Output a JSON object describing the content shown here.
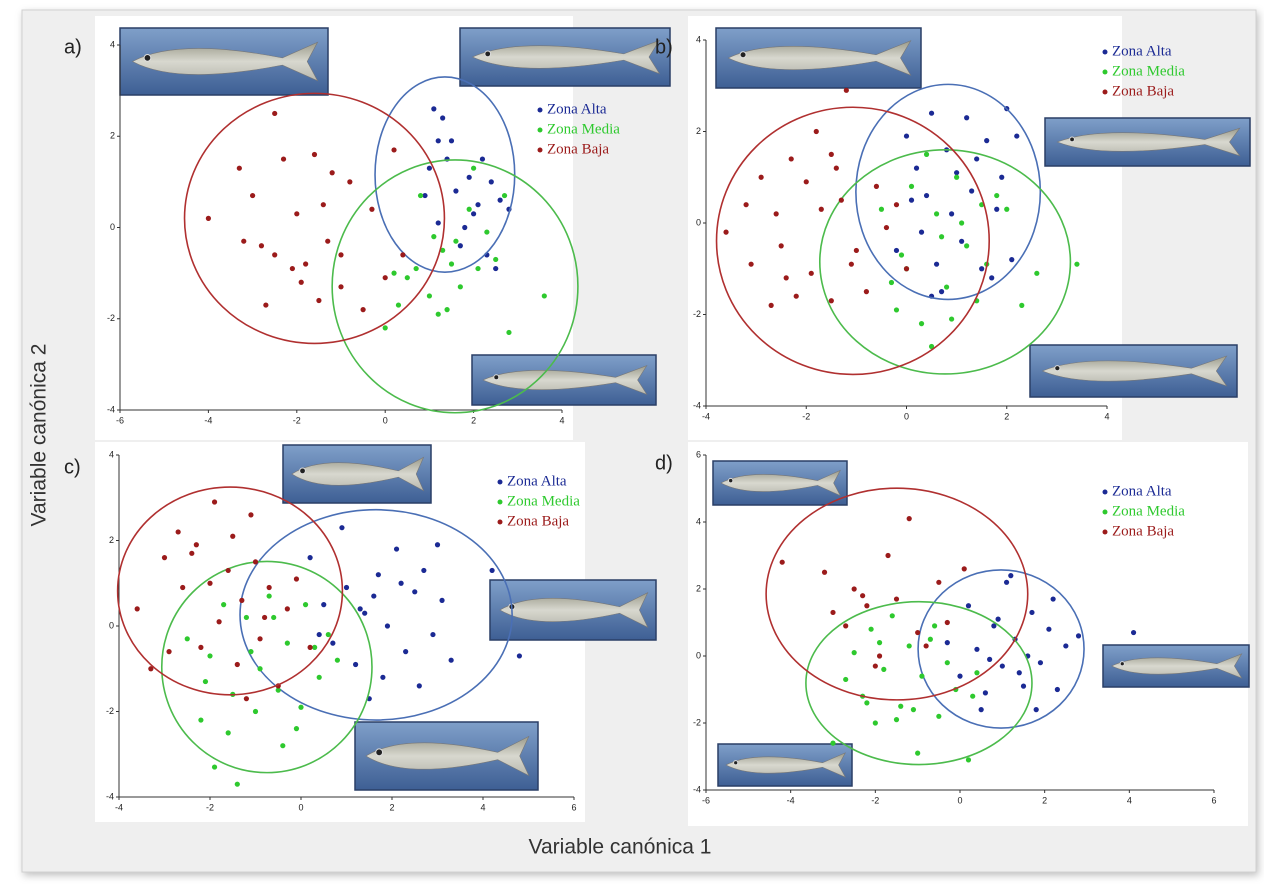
{
  "shared_labels": {
    "y_label": "Variable canónica 2",
    "x_label": "Variable canónica 1"
  },
  "chart_data": [
    {
      "type": "scatter",
      "label": "a)",
      "xlim": [
        -6,
        4
      ],
      "ylim": [
        -4,
        4
      ],
      "xticks": [
        -6,
        -4,
        -2,
        0,
        2,
        4
      ],
      "yticks": [
        -4,
        -2,
        0,
        2,
        4
      ],
      "legend": "upper right",
      "series": [
        {
          "name": "Zona Alta",
          "color": "#1b2a94",
          "ellipse_color": "#4a6fb5",
          "x": [
            1.1,
            1.2,
            1.3,
            1.5,
            1.6,
            1.8,
            2.0,
            2.2,
            2.4,
            2.6,
            1.0,
            1.4,
            1.9,
            2.1,
            2.8,
            0.9,
            1.7,
            2.3,
            1.2,
            2.5
          ],
          "values": [
            2.6,
            1.9,
            2.4,
            1.9,
            0.8,
            0.0,
            0.3,
            1.5,
            1.0,
            0.6,
            1.3,
            1.5,
            1.1,
            0.5,
            0.4,
            0.7,
            -0.4,
            -0.6,
            0.1,
            -0.9
          ],
          "ellipse": {
            "center": [
              1.35,
              1.16
            ],
            "radii": [
              1.58,
              2.14
            ]
          }
        },
        {
          "name": "Zona Media",
          "color": "#2ec92e",
          "ellipse_color": "#4cbb4c",
          "x": [
            0.0,
            0.3,
            0.5,
            0.7,
            1.0,
            1.2,
            1.3,
            1.5,
            1.7,
            1.9,
            2.1,
            2.3,
            2.5,
            2.8,
            3.6,
            0.2,
            0.8,
            1.1,
            1.4,
            2.0,
            2.7,
            1.6
          ],
          "values": [
            -2.2,
            -1.7,
            -1.1,
            -0.9,
            -1.5,
            -1.9,
            -0.5,
            -0.8,
            -1.3,
            0.4,
            -0.9,
            -0.1,
            -0.7,
            -2.3,
            -1.5,
            -1.0,
            0.7,
            -0.2,
            -1.8,
            1.3,
            0.7,
            -0.3
          ],
          "ellipse": {
            "center": [
              1.58,
              -1.29
            ],
            "radii": [
              2.78,
              2.77
            ]
          }
        },
        {
          "name": "Zona Baja",
          "color": "#9b1b1b",
          "ellipse_color": "#b03030",
          "x": [
            -4.0,
            -3.3,
            -3.2,
            -3.0,
            -2.7,
            -2.5,
            -2.5,
            -2.3,
            -2.1,
            -2.0,
            -1.8,
            -1.6,
            -1.5,
            -1.4,
            -1.3,
            -1.2,
            -1.0,
            -1.0,
            -0.8,
            -0.5,
            -0.3,
            0.0,
            0.2,
            0.4,
            -1.9,
            -2.8
          ],
          "values": [
            0.2,
            1.3,
            -0.3,
            0.7,
            -1.7,
            2.5,
            -0.6,
            1.5,
            -0.9,
            0.3,
            -0.8,
            1.6,
            -1.6,
            0.5,
            -0.3,
            1.2,
            -0.6,
            -1.3,
            1.0,
            -1.8,
            0.4,
            -1.1,
            1.7,
            -0.6,
            -1.2,
            -0.4
          ],
          "ellipse": {
            "center": [
              -1.6,
              0.2
            ],
            "radii": [
              2.94,
              2.74
            ]
          }
        }
      ]
    },
    {
      "type": "scatter",
      "label": "b)",
      "xlim": [
        -4,
        4
      ],
      "ylim": [
        -4,
        4
      ],
      "xticks": [
        -4,
        -2,
        0,
        2,
        4
      ],
      "yticks": [
        -4,
        -2,
        0,
        2,
        4
      ],
      "legend": "upper right",
      "series": [
        {
          "name": "Zona Alta",
          "color": "#1b2a94",
          "ellipse_color": "#4a6fb5",
          "x": [
            0.0,
            0.2,
            0.4,
            0.5,
            0.6,
            0.8,
            0.9,
            1.0,
            1.1,
            1.2,
            1.3,
            1.5,
            1.6,
            1.8,
            2.0,
            2.1,
            0.3,
            0.7,
            1.4,
            0.1,
            -0.2,
            1.9,
            1.7,
            0.5,
            2.2
          ],
          "values": [
            1.9,
            1.2,
            0.6,
            2.4,
            -0.9,
            1.6,
            0.2,
            1.1,
            -0.4,
            2.3,
            0.7,
            -1.0,
            1.8,
            0.3,
            2.5,
            -0.8,
            -0.2,
            -1.5,
            1.4,
            0.5,
            -0.6,
            1.0,
            -1.2,
            -1.6,
            1.9
          ],
          "ellipse": {
            "center": [
              0.83,
              0.68
            ],
            "radii": [
              1.84,
              2.35
            ]
          }
        },
        {
          "name": "Zona Media",
          "color": "#2ec92e",
          "ellipse_color": "#4cbb4c",
          "x": [
            -0.5,
            -0.3,
            -0.1,
            0.1,
            0.3,
            0.5,
            0.6,
            0.8,
            1.0,
            1.2,
            1.4,
            1.6,
            1.8,
            2.0,
            2.3,
            2.6,
            3.4,
            0.4,
            0.9,
            1.1,
            0.7,
            -0.2,
            1.5,
            0.0
          ],
          "values": [
            0.3,
            -1.3,
            -0.7,
            0.8,
            -2.2,
            -2.7,
            0.2,
            -1.4,
            1.0,
            -0.5,
            -1.7,
            -0.9,
            0.6,
            0.3,
            -1.8,
            -1.1,
            -0.9,
            1.5,
            -2.1,
            0.0,
            -0.3,
            -1.9,
            0.4,
            -1.0
          ],
          "ellipse": {
            "center": [
              0.77,
              -0.85
            ],
            "radii": [
              2.5,
              2.45
            ]
          }
        },
        {
          "name": "Zona Baja",
          "color": "#9b1b1b",
          "ellipse_color": "#b03030",
          "x": [
            -3.6,
            -3.2,
            -3.1,
            -2.9,
            -2.7,
            -2.6,
            -2.5,
            -2.3,
            -2.2,
            -2.0,
            -1.9,
            -1.8,
            -1.7,
            -1.5,
            -1.4,
            -1.3,
            -1.2,
            -1.0,
            -0.8,
            -0.6,
            -0.4,
            -0.2,
            0.0,
            -1.5,
            -2.4,
            -1.1
          ],
          "values": [
            -0.2,
            0.4,
            -0.9,
            1.0,
            -1.8,
            0.2,
            -0.5,
            1.4,
            -1.6,
            0.9,
            -1.1,
            2.0,
            0.3,
            -1.7,
            1.2,
            0.5,
            2.9,
            -0.6,
            -1.5,
            0.8,
            -0.1,
            0.4,
            -1.0,
            1.5,
            -1.2,
            -0.9
          ],
          "ellipse": {
            "center": [
              -1.07,
              -0.39
            ],
            "radii": [
              2.72,
              2.92
            ]
          }
        }
      ]
    },
    {
      "type": "scatter",
      "label": "c)",
      "xlim": [
        -4,
        6
      ],
      "ylim": [
        -4,
        4
      ],
      "xticks": [
        -4,
        -2,
        0,
        2,
        4,
        6
      ],
      "yticks": [
        -4,
        -2,
        0,
        2,
        4
      ],
      "legend": "upper right",
      "series": [
        {
          "name": "Zona Alta",
          "color": "#1b2a94",
          "ellipse_color": "#4a6fb5",
          "x": [
            0.2,
            0.5,
            0.7,
            1.0,
            1.2,
            1.4,
            1.5,
            1.7,
            1.9,
            2.1,
            2.3,
            2.5,
            2.7,
            2.9,
            3.1,
            3.3,
            4.2,
            4.8,
            0.9,
            1.8,
            2.2,
            2.6,
            1.3,
            0.4,
            3.0,
            1.6
          ],
          "values": [
            1.6,
            0.5,
            -0.4,
            0.9,
            -0.9,
            0.3,
            -1.7,
            1.2,
            0.0,
            1.8,
            -0.6,
            0.8,
            1.3,
            -0.2,
            0.6,
            -0.8,
            1.3,
            -0.7,
            2.3,
            -1.2,
            1.0,
            -1.4,
            0.4,
            -0.2,
            1.9,
            0.7
          ],
          "ellipse": {
            "center": [
              1.65,
              0.26
            ],
            "radii": [
              2.99,
              2.46
            ]
          }
        },
        {
          "name": "Zona Media",
          "color": "#2ec92e",
          "ellipse_color": "#4cbb4c",
          "x": [
            -2.5,
            -2.2,
            -2.0,
            -1.9,
            -1.7,
            -1.5,
            -1.4,
            -1.2,
            -1.0,
            -0.9,
            -0.7,
            -0.5,
            -0.3,
            -0.1,
            0.1,
            0.4,
            0.6,
            0.8,
            -1.6,
            -0.6,
            -2.1,
            -1.1,
            0.0,
            -0.4,
            0.3
          ],
          "values": [
            -0.3,
            -2.2,
            -0.7,
            -3.3,
            0.5,
            -1.6,
            -3.7,
            0.2,
            -2.0,
            -1.0,
            0.7,
            -1.5,
            -0.4,
            -2.4,
            0.5,
            -1.2,
            -0.2,
            -0.8,
            -2.5,
            0.2,
            -1.3,
            -0.6,
            -1.9,
            -2.8,
            -0.5
          ],
          "ellipse": {
            "center": [
              -0.75,
              -0.96
            ],
            "radii": [
              2.31,
              2.47
            ]
          }
        },
        {
          "name": "Zona Baja",
          "color": "#9b1b1b",
          "ellipse_color": "#b03030",
          "x": [
            -3.6,
            -3.3,
            -3.0,
            -2.7,
            -2.6,
            -2.4,
            -2.2,
            -2.0,
            -1.9,
            -1.8,
            -1.6,
            -1.4,
            -1.3,
            -1.1,
            -1.0,
            -0.9,
            -0.7,
            -0.5,
            -0.3,
            -0.1,
            0.2,
            -2.9,
            -1.5,
            -0.8,
            -1.2,
            -2.3
          ],
          "values": [
            0.4,
            -1.0,
            1.6,
            2.2,
            0.9,
            1.7,
            -0.5,
            1.0,
            2.9,
            0.1,
            1.3,
            -0.9,
            0.6,
            2.6,
            1.5,
            -0.3,
            0.9,
            -1.4,
            0.4,
            1.1,
            -0.5,
            -0.6,
            2.1,
            0.2,
            -1.7,
            1.9
          ],
          "ellipse": {
            "center": [
              -1.56,
              0.82
            ],
            "radii": [
              2.47,
              2.43
            ]
          }
        }
      ]
    },
    {
      "type": "scatter",
      "label": "d)",
      "xlim": [
        -6,
        6
      ],
      "ylim": [
        -4,
        6
      ],
      "xticks": [
        -6,
        -4,
        -2,
        0,
        2,
        4,
        6
      ],
      "yticks": [
        -4,
        -2,
        0,
        2,
        4,
        6
      ],
      "legend": "upper right",
      "series": [
        {
          "name": "Zona Alta",
          "color": "#1b2a94",
          "ellipse_color": "#4a6fb5",
          "x": [
            -0.3,
            0.0,
            0.2,
            0.4,
            0.6,
            0.8,
            1.0,
            1.1,
            1.3,
            1.5,
            1.7,
            1.9,
            2.1,
            2.3,
            2.5,
            2.8,
            4.1,
            0.5,
            0.9,
            1.4,
            1.8,
            2.2,
            0.7,
            1.2,
            1.6
          ],
          "values": [
            0.4,
            -0.6,
            1.5,
            0.2,
            -1.1,
            0.9,
            -0.3,
            2.2,
            0.5,
            -0.9,
            1.3,
            -0.2,
            0.8,
            -1.0,
            0.3,
            0.6,
            0.7,
            -1.6,
            1.1,
            -0.5,
            -1.6,
            1.7,
            -0.1,
            2.4,
            0.0
          ],
          "ellipse": {
            "center": [
              0.97,
              0.21
            ],
            "radii": [
              1.96,
              2.36
            ]
          }
        },
        {
          "name": "Zona Media",
          "color": "#2ec92e",
          "ellipse_color": "#4cbb4c",
          "x": [
            -3.0,
            -2.7,
            -2.5,
            -2.3,
            -2.1,
            -2.0,
            -1.8,
            -1.6,
            -1.4,
            -1.2,
            -1.0,
            -0.9,
            -0.7,
            -0.5,
            -0.3,
            -0.1,
            0.2,
            0.4,
            -1.5,
            -2.2,
            -0.6,
            -1.1,
            0.3,
            -1.9
          ],
          "values": [
            -2.6,
            -0.7,
            0.1,
            -1.2,
            0.8,
            -2.0,
            -0.4,
            1.2,
            -1.5,
            0.3,
            -2.9,
            -0.6,
            0.5,
            -1.8,
            -0.2,
            -1.0,
            -3.1,
            -0.5,
            -1.9,
            -1.4,
            0.9,
            -1.6,
            -1.2,
            0.4
          ],
          "ellipse": {
            "center": [
              -0.97,
              -0.81
            ],
            "radii": [
              2.67,
              2.43
            ]
          }
        },
        {
          "name": "Zona Baja",
          "color": "#9b1b1b",
          "ellipse_color": "#b03030",
          "x": [
            -4.2,
            -3.2,
            -3.0,
            -2.7,
            -2.5,
            -2.2,
            -2.0,
            -1.7,
            -1.5,
            -1.2,
            -1.0,
            -0.8,
            -0.5,
            -0.3,
            0.1,
            -1.9,
            -2.3
          ],
          "values": [
            2.8,
            2.5,
            1.3,
            0.9,
            2.0,
            1.5,
            -0.3,
            3.0,
            1.7,
            4.1,
            0.7,
            0.3,
            2.2,
            1.0,
            2.6,
            0.0,
            1.8
          ],
          "ellipse": {
            "center": [
              -1.49,
              1.85
            ],
            "radii": [
              3.09,
              3.16
            ]
          }
        }
      ]
    }
  ]
}
